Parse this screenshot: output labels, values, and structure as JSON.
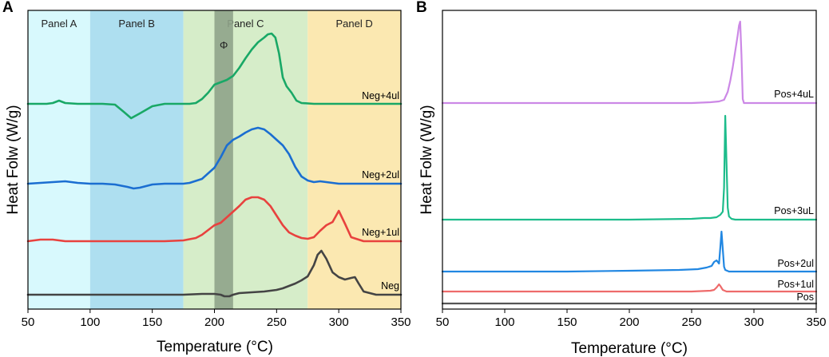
{
  "chart_data": [
    {
      "type": "line",
      "panel": "A",
      "title": "",
      "xlabel": "Temperature (°C)",
      "ylabel": "Heat Folw (W/g)",
      "xlim": [
        50,
        350
      ],
      "xticks": [
        50,
        100,
        150,
        200,
        250,
        300,
        350
      ],
      "regions": [
        {
          "label": "Panel A",
          "x0": 50,
          "x1": 100,
          "color": "#d8f9fd"
        },
        {
          "label": "Panel B",
          "x0": 100,
          "x1": 175,
          "color": "#aedff0"
        },
        {
          "label": "Panel C",
          "x0": 175,
          "x1": 275,
          "color": "#d6edc9"
        },
        {
          "label": "Panel D",
          "x0": 275,
          "x1": 350,
          "color": "#fbe8b1"
        }
      ],
      "band": {
        "label": "Φ",
        "x0": 200,
        "x1": 215,
        "color": "#8fa38a"
      },
      "series": [
        {
          "name": "Neg+4ul",
          "color": "#19a866",
          "x": [
            50,
            65,
            70,
            75,
            80,
            90,
            100,
            110,
            120,
            127,
            133,
            140,
            150,
            160,
            170,
            180,
            185,
            190,
            195,
            200,
            205,
            210,
            215,
            220,
            225,
            230,
            235,
            240,
            243,
            246,
            249,
            252,
            255,
            258,
            262,
            266,
            270,
            280,
            300,
            320,
            350
          ],
          "y": [
            0,
            0,
            1,
            4,
            1,
            0,
            0,
            0,
            -1,
            -10,
            -18,
            -12,
            -3,
            0,
            0,
            0,
            1,
            6,
            14,
            24,
            27,
            30,
            35,
            45,
            57,
            68,
            77,
            83,
            87,
            88,
            83,
            63,
            33,
            22,
            14,
            4,
            1,
            0,
            0,
            0,
            0
          ]
        },
        {
          "name": "Neg+2ul",
          "color": "#1b6ed1",
          "x": [
            50,
            60,
            70,
            80,
            90,
            100,
            110,
            120,
            130,
            135,
            140,
            150,
            160,
            170,
            175,
            180,
            190,
            200,
            205,
            210,
            215,
            220,
            225,
            230,
            235,
            240,
            245,
            250,
            255,
            260,
            265,
            270,
            275,
            280,
            285,
            290,
            295,
            300,
            320,
            350
          ],
          "y": [
            0,
            1,
            2,
            3,
            1,
            0,
            0,
            -1,
            -4,
            -6,
            -5,
            -1,
            0,
            0,
            0,
            1,
            6,
            20,
            33,
            48,
            55,
            59,
            64,
            68,
            70,
            68,
            62,
            55,
            48,
            37,
            21,
            9,
            4,
            2,
            3,
            2,
            1,
            0,
            0,
            0
          ]
        },
        {
          "name": "Neg+1ul",
          "color": "#e8423e",
          "x": [
            50,
            60,
            70,
            80,
            100,
            120,
            140,
            160,
            175,
            185,
            190,
            195,
            200,
            205,
            210,
            215,
            220,
            225,
            230,
            235,
            240,
            245,
            250,
            255,
            260,
            265,
            270,
            275,
            280,
            285,
            290,
            295,
            300,
            305,
            310,
            320,
            330,
            350
          ],
          "y": [
            0,
            2,
            2,
            0,
            0,
            0,
            0,
            0,
            1,
            4,
            8,
            14,
            20,
            23,
            30,
            37,
            44,
            52,
            55,
            55,
            52,
            44,
            32,
            20,
            11,
            7,
            4,
            3,
            5,
            13,
            20,
            24,
            38,
            22,
            5,
            0,
            0,
            0
          ]
        },
        {
          "name": "Neg",
          "color": "#444444",
          "x": [
            50,
            100,
            150,
            175,
            190,
            200,
            205,
            208,
            212,
            215,
            220,
            230,
            240,
            250,
            255,
            260,
            265,
            270,
            275,
            280,
            283,
            286,
            290,
            295,
            300,
            305,
            310,
            313,
            316,
            320,
            330,
            350
          ],
          "y": [
            0,
            0,
            0,
            0,
            1,
            1,
            0,
            -2,
            -2,
            0,
            2,
            3,
            4,
            6,
            8,
            11,
            14,
            18,
            23,
            37,
            50,
            55,
            45,
            28,
            22,
            19,
            21,
            22,
            14,
            4,
            0,
            0
          ]
        }
      ]
    },
    {
      "type": "line",
      "panel": "B",
      "title": "",
      "xlabel": "Temperature (°C)",
      "ylabel": "Heat Folw (W/g)",
      "xlim": [
        50,
        350
      ],
      "xticks": [
        50,
        100,
        150,
        200,
        250,
        300,
        350
      ],
      "series": [
        {
          "name": "Pos+4uL",
          "color": "#cc88e6",
          "x": [
            50,
            100,
            150,
            200,
            250,
            265,
            272,
            276,
            279,
            281,
            283,
            285,
            287,
            288,
            289,
            290,
            291,
            292,
            350
          ],
          "y": [
            0,
            0,
            0,
            0,
            0,
            1,
            2,
            4,
            14,
            28,
            45,
            65,
            85,
            97,
            102,
            60,
            5,
            0,
            0
          ]
        },
        {
          "name": "Pos+3uL",
          "color": "#1dbc8b",
          "x": [
            50,
            100,
            150,
            200,
            250,
            260,
            265,
            270,
            273,
            275,
            276,
            277,
            278,
            279,
            280,
            282,
            285,
            350
          ],
          "y": [
            0,
            0,
            0,
            0,
            1,
            2,
            2,
            3,
            6,
            10,
            40,
            130,
            70,
            15,
            4,
            1,
            0,
            0
          ]
        },
        {
          "name": "Pos+2ul",
          "color": "#2187e2",
          "x": [
            50,
            100,
            150,
            200,
            240,
            255,
            262,
            266,
            268,
            270,
            272,
            273,
            274,
            275,
            276,
            277,
            280,
            290,
            350
          ],
          "y": [
            0,
            0,
            0,
            1,
            2,
            3,
            5,
            7,
            12,
            14,
            10,
            30,
            50,
            28,
            6,
            2,
            0,
            0,
            0
          ]
        },
        {
          "name": "Pos+1ul",
          "color": "#ee6b6b",
          "x": [
            50,
            100,
            150,
            200,
            250,
            265,
            268,
            270,
            272,
            273,
            275,
            278,
            285,
            350
          ],
          "y": [
            0,
            0,
            0,
            0,
            0,
            1,
            2,
            5,
            9,
            7,
            2,
            0,
            0,
            0
          ]
        },
        {
          "name": "Pos",
          "color": "#555555",
          "x": [
            50,
            350
          ],
          "y": [
            0,
            0
          ]
        }
      ]
    }
  ]
}
